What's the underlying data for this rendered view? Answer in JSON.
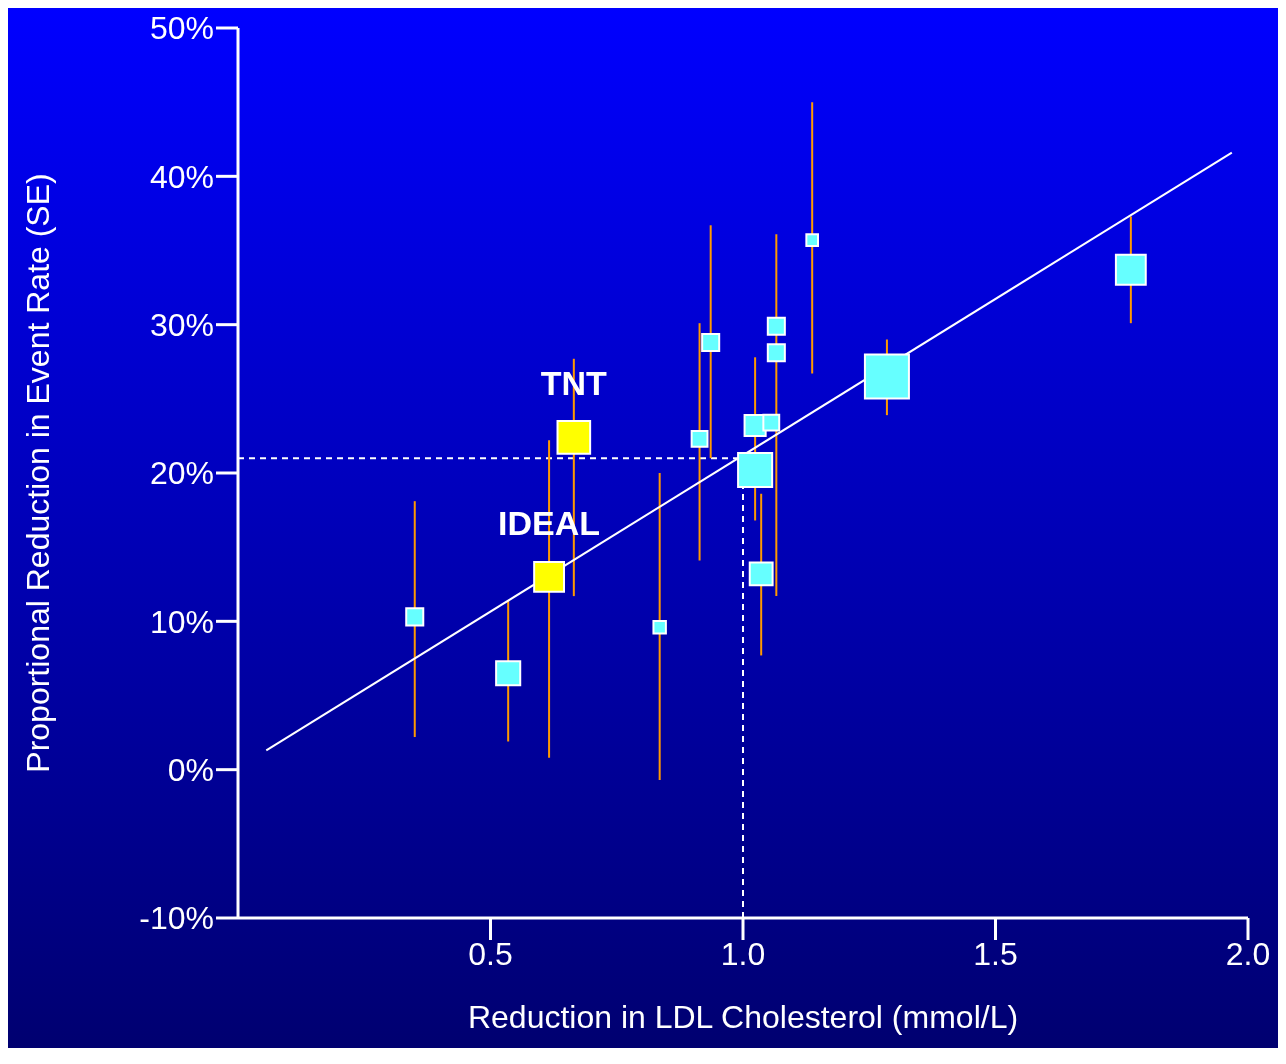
{
  "chart_data": {
    "type": "bubble",
    "xlabel": "Reduction in LDL Cholesterol (mmol/L)",
    "ylabel": "Proportional Reduction in Event Rate (SE)",
    "xlim": [
      0,
      2.0
    ],
    "xticks": [
      0.5,
      {
        "value": 1,
        "label": "1.0"
      },
      1.5,
      {
        "value": 2,
        "label": "2.0"
      }
    ],
    "ylim": [
      -10,
      50
    ],
    "yticks": [
      {
        "value": -10,
        "label": "-10%"
      },
      {
        "value": 0,
        "label": "0%"
      },
      {
        "value": 10,
        "label": "10%"
      },
      {
        "value": 20,
        "label": "20%"
      },
      {
        "value": 30,
        "label": "30%"
      },
      {
        "value": 40,
        "label": "40%"
      },
      {
        "value": 50,
        "label": "50%"
      }
    ],
    "marker": "square",
    "grid": false,
    "legend": false,
    "series": [
      {
        "color": "#66ffff",
        "x": [
          0.35,
          0.535,
          0.835,
          0.914,
          0.936,
          1.024,
          1.024,
          1.036,
          1.056,
          1.066,
          1.066,
          1.137,
          1.285,
          1.768
        ],
        "values": [
          10.3,
          6.5,
          9.6,
          22.3,
          28.8,
          23.2,
          20.2,
          13.2,
          23.4,
          29.9,
          28.1,
          35.7,
          26.5,
          33.7
        ],
        "sizes": [
          0.15,
          0.3,
          0.08,
          0.13,
          0.15,
          0.23,
          0.6,
          0.27,
          0.13,
          0.15,
          0.15,
          0.07,
          1,
          0.46
        ],
        "errors": [
          [
            2.2,
            18.1
          ],
          [
            1.9,
            11.4
          ],
          [
            -0.7,
            20.0
          ],
          [
            14.1,
            30.1
          ],
          [
            21.0,
            36.7
          ],
          [
            16.8,
            27.8
          ],
          null,
          [
            7.7,
            18.6
          ],
          null,
          [
            11.7,
            36.1
          ],
          null,
          [
            26.7,
            45.0
          ],
          [
            23.9,
            29.0
          ],
          [
            30.1,
            37.3
          ]
        ]
      },
      {
        "color": "#ffff00",
        "x": [
          0.665
        ],
        "values": [
          22.4
        ],
        "sizes": [
          0.55
        ],
        "errors": [
          [
            11.7,
            27.7
          ]
        ]
      },
      {
        "color": "#ffff00",
        "x": [
          0.616
        ],
        "values": [
          13.0
        ],
        "sizes": [
          0.46
        ],
        "errors": [
          [
            0.8,
            22.2
          ]
        ]
      },
      {
        "type": "line",
        "color": "#ffffff",
        "marker": "none",
        "x": [
          0.056,
          1.968
        ],
        "values": [
          1.3,
          41.6
        ]
      }
    ],
    "ref_lines": [
      {
        "axis": "x",
        "value": 1.0,
        "color": "#ffffff",
        "line_style": "dashed"
      },
      {
        "axis": "y",
        "value": 21,
        "color": "#ffffff",
        "line_style": "dashed"
      }
    ],
    "annotations": [
      {
        "text": "TNT",
        "x": 0.665,
        "y": 22.4
      },
      {
        "text": "IDEAL",
        "x": 0.616,
        "y": 13.0
      }
    ]
  }
}
